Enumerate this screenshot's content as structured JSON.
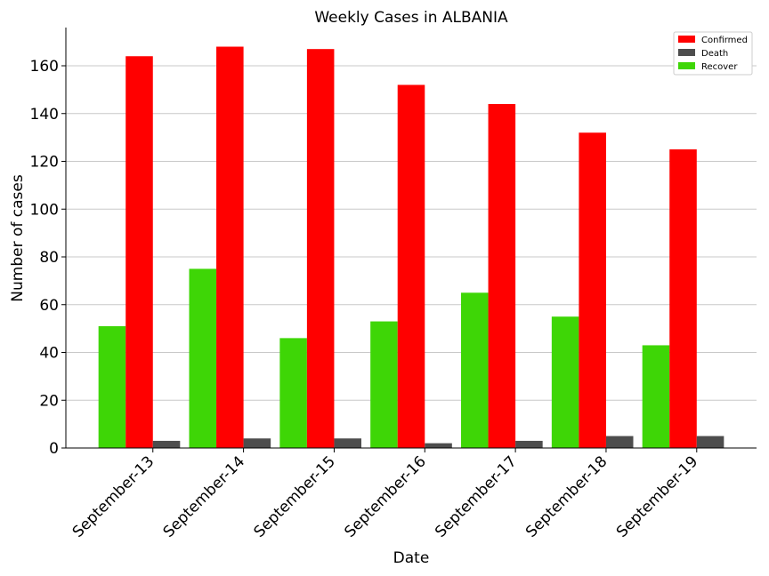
{
  "chart_data": {
    "type": "bar",
    "title": "Weekly Cases in ALBANIA",
    "xlabel": "Date",
    "ylabel": "Number of cases",
    "categories": [
      "September-13",
      "September-14",
      "September-15",
      "September-16",
      "September-17",
      "September-18",
      "September-19"
    ],
    "ylim": [
      0,
      176
    ],
    "yticks": [
      0,
      20,
      40,
      60,
      80,
      100,
      120,
      140,
      160
    ],
    "grid": "horizontal",
    "legend_position": "top-right",
    "series": [
      {
        "name": "Recover",
        "color": "#3ed606",
        "values": [
          51,
          75,
          46,
          53,
          65,
          55,
          43
        ]
      },
      {
        "name": "Confirmed",
        "color": "#ff0000",
        "values": [
          164,
          168,
          167,
          152,
          144,
          132,
          125
        ]
      },
      {
        "name": "Death",
        "color": "#4d4d4d",
        "values": [
          3,
          4,
          4,
          2,
          3,
          5,
          5
        ]
      }
    ],
    "legend_order": [
      "Confirmed",
      "Death",
      "Recover"
    ]
  }
}
